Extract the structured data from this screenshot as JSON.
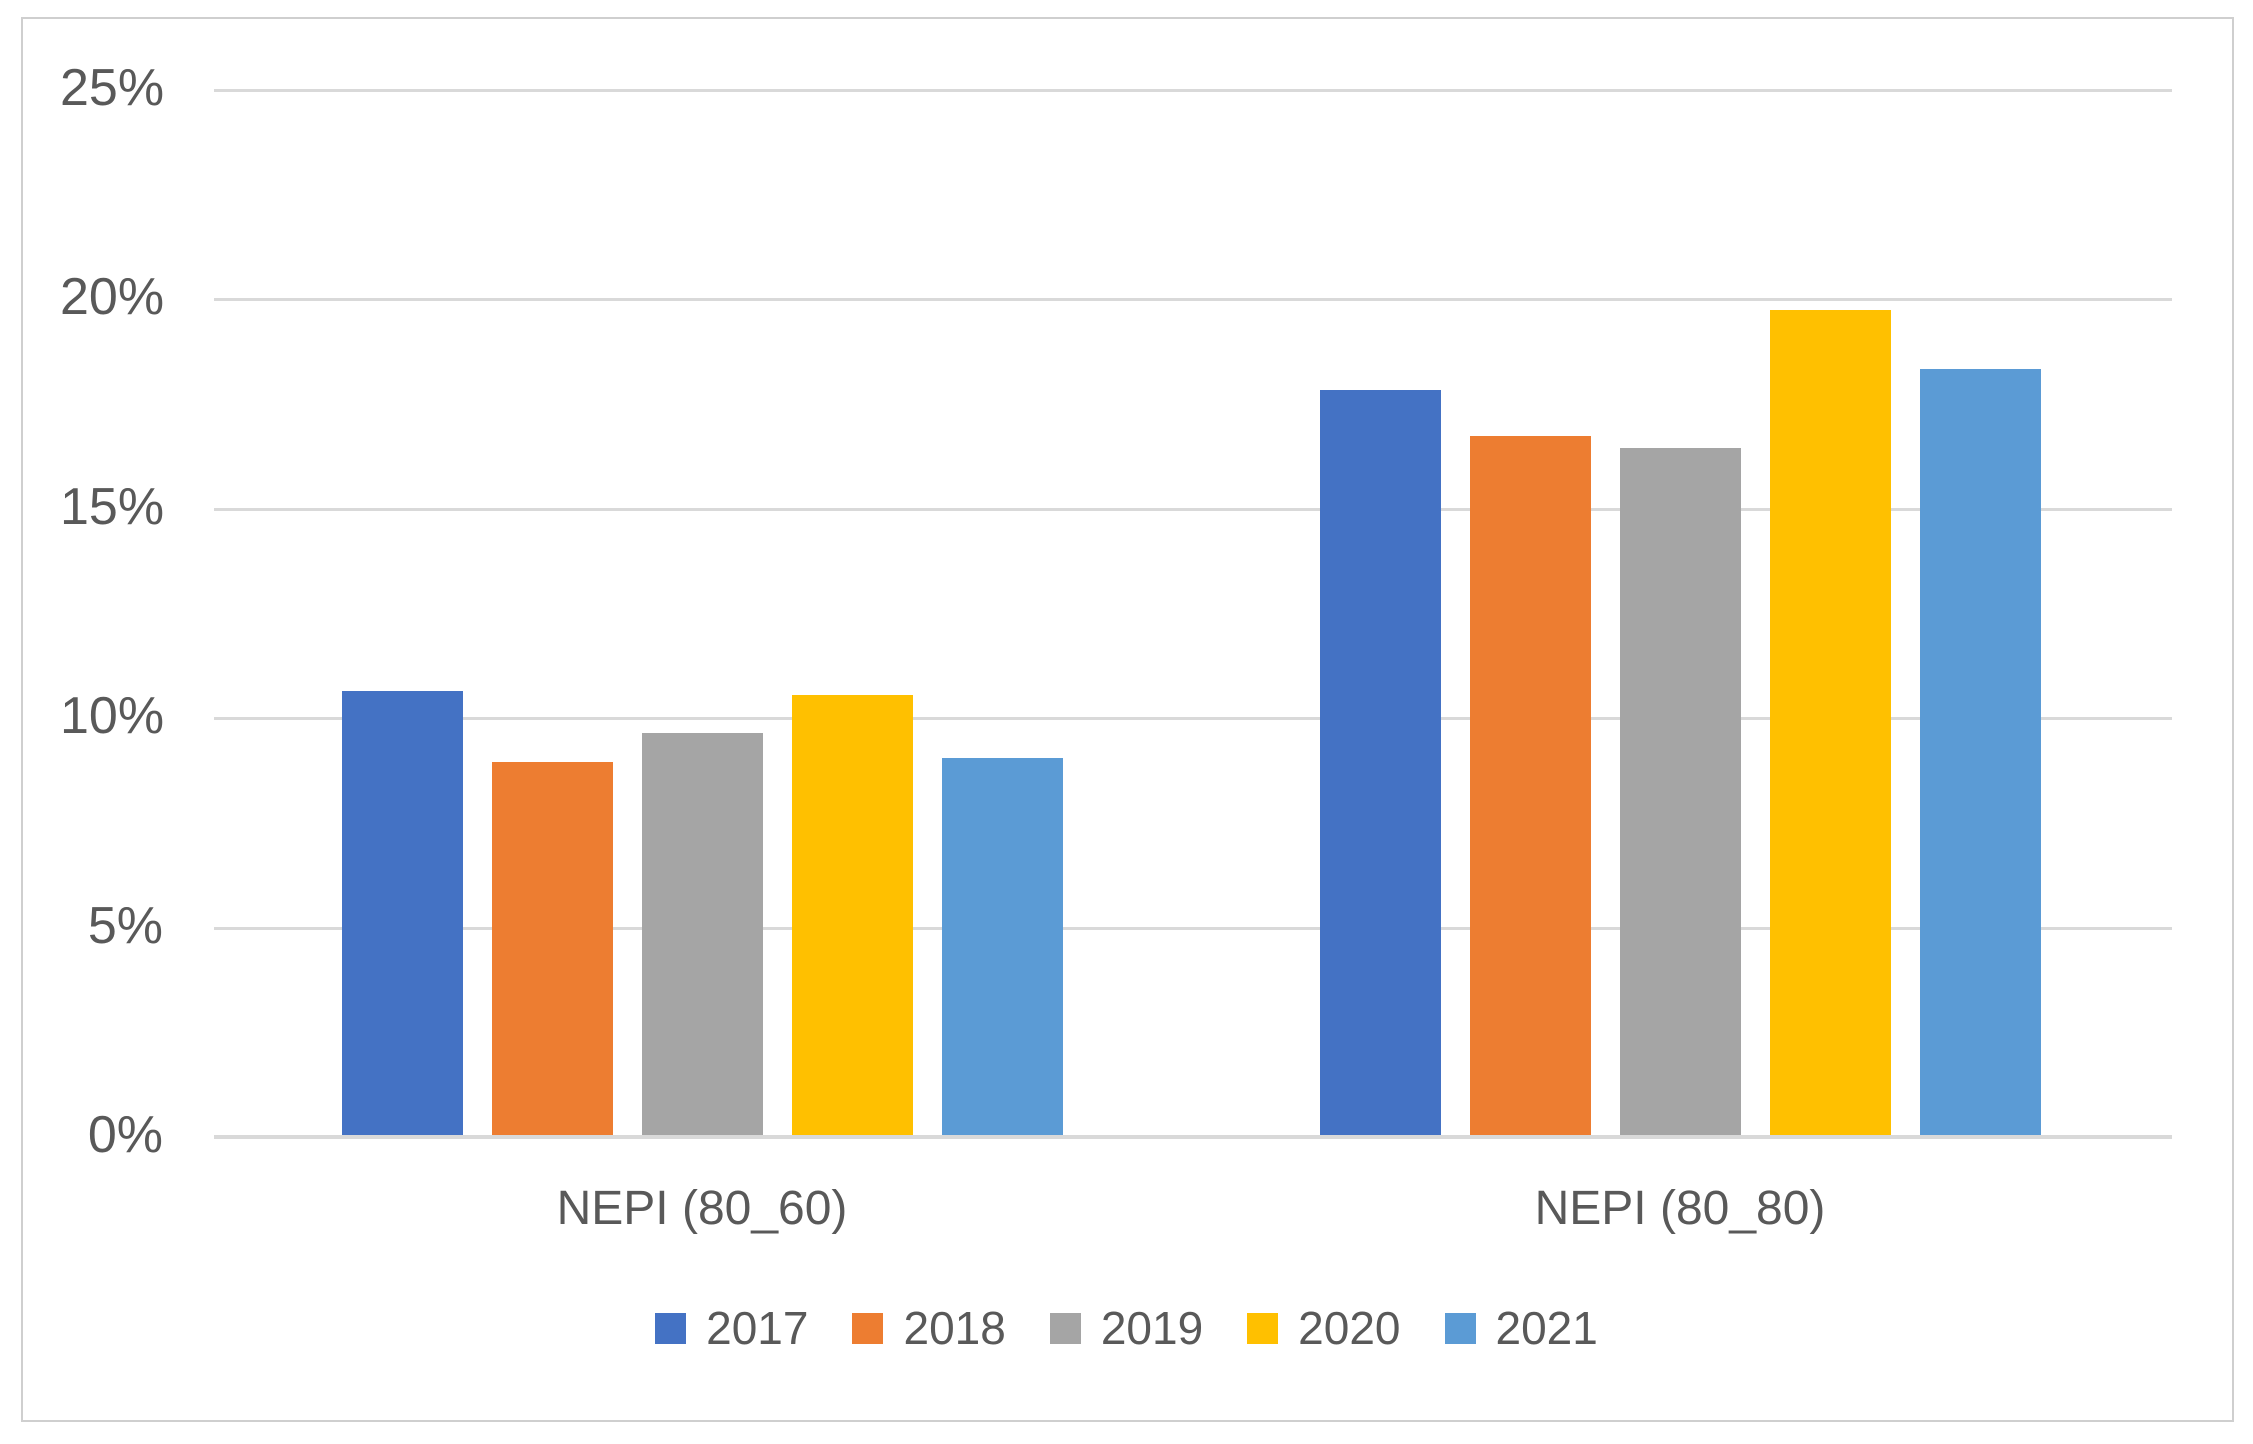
{
  "chart_data": {
    "type": "bar",
    "title": "",
    "categories": [
      "NEPI (80_60)",
      "NEPI (80_80)"
    ],
    "series": [
      {
        "name": "2017",
        "color": "#4472C4",
        "values": [
          10.6,
          17.8
        ]
      },
      {
        "name": "2018",
        "color": "#ED7D31",
        "values": [
          8.9,
          16.7
        ]
      },
      {
        "name": "2019",
        "color": "#A5A5A5",
        "values": [
          9.6,
          16.4
        ]
      },
      {
        "name": "2020",
        "color": "#FFC000",
        "values": [
          10.5,
          19.7
        ]
      },
      {
        "name": "2021",
        "color": "#5B9BD5",
        "values": [
          9.0,
          18.3
        ]
      }
    ],
    "ylim": [
      0,
      25
    ],
    "ytick_step": 5,
    "ytick_labels": [
      "0%",
      "5%",
      "10%",
      "15%",
      "20%",
      "25%"
    ],
    "grid": true,
    "legend_position": "bottom",
    "colors": {
      "text": "#595959",
      "gridline": "#D9D9D9",
      "axis_line": "#D9D9D9",
      "chart_border": "#CFCFCF",
      "background": "#FFFFFF"
    }
  }
}
